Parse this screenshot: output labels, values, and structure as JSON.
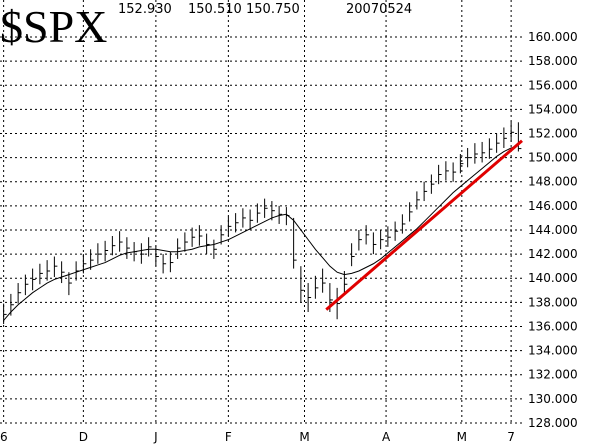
{
  "chart_data": {
    "type": "ohlc",
    "title": "$SPX",
    "header": [
      "152.930",
      "150.510",
      "150.750",
      "20070524"
    ],
    "xlim": [
      -1,
      143
    ],
    "ylim": [
      127.83,
      163.07
    ],
    "xticks": [
      {
        "value": 0,
        "label": "6"
      },
      {
        "value": 22,
        "label": "D"
      },
      {
        "value": 42,
        "label": "J"
      },
      {
        "value": 62,
        "label": "F"
      },
      {
        "value": 83,
        "label": "M"
      },
      {
        "value": 105.5,
        "label": "A"
      },
      {
        "value": 126.4,
        "label": "M"
      },
      {
        "value": 140,
        "label": "7"
      }
    ],
    "yticks": [
      {
        "value": 128,
        "label": "128.000"
      },
      {
        "value": 130,
        "label": "130.000"
      },
      {
        "value": 132,
        "label": "132.000"
      },
      {
        "value": 134,
        "label": "134.000"
      },
      {
        "value": 136,
        "label": "136.000"
      },
      {
        "value": 138,
        "label": "138.000"
      },
      {
        "value": 140,
        "label": "140.000"
      },
      {
        "value": 142,
        "label": "142.000"
      },
      {
        "value": 144,
        "label": "144.000"
      },
      {
        "value": 146,
        "label": "146.000"
      },
      {
        "value": 148,
        "label": "148.000"
      },
      {
        "value": 150,
        "label": "150.000"
      },
      {
        "value": 152,
        "label": "152.000"
      },
      {
        "value": 154,
        "label": "154.000"
      },
      {
        "value": 156,
        "label": "156.000"
      },
      {
        "value": 158,
        "label": "158.000"
      },
      {
        "value": 160,
        "label": "160.000"
      }
    ],
    "grid": true,
    "color": "#000000",
    "x": [
      0,
      2,
      4,
      6,
      8,
      10,
      12,
      14,
      16,
      18,
      20,
      22,
      24,
      26,
      28,
      30,
      32,
      34,
      36,
      38,
      40,
      42,
      44,
      46,
      48,
      50,
      52,
      54,
      56,
      58,
      60,
      62,
      64,
      66,
      68,
      70,
      72,
      74,
      76,
      78,
      80,
      82,
      84,
      86,
      88,
      90,
      92,
      94,
      96,
      98,
      100,
      102,
      104,
      106,
      108,
      110,
      112,
      114,
      116,
      118,
      120,
      122,
      124,
      126,
      128,
      130,
      132,
      134,
      136,
      138,
      140,
      142
    ],
    "high": [
      137.9,
      138.7,
      139.6,
      140.3,
      140.8,
      141.2,
      141.5,
      141.8,
      141.4,
      140.5,
      141.4,
      142.0,
      142.4,
      142.9,
      143.1,
      143.5,
      143.9,
      143.4,
      143.0,
      142.9,
      143.4,
      142.7,
      142.0,
      142.2,
      143.3,
      143.8,
      144.2,
      144.4,
      143.7,
      143.2,
      144.4,
      145.1,
      145.4,
      145.8,
      145.7,
      146.2,
      146.6,
      146.4,
      146.0,
      145.9,
      145.0,
      141.0,
      139.6,
      140.2,
      140.8,
      139.6,
      139.2,
      140.6,
      142.9,
      144.0,
      144.4,
      143.8,
      144.0,
      144.3,
      144.7,
      145.3,
      146.3,
      147.2,
      148.0,
      148.6,
      149.4,
      149.7,
      149.6,
      150.3,
      150.8,
      151.2,
      151.3,
      151.6,
      152.0,
      152.5,
      153.0,
      152.93
    ],
    "low": [
      136.2,
      136.9,
      137.9,
      138.6,
      139.0,
      139.5,
      139.8,
      140.1,
      139.6,
      138.6,
      139.8,
      140.4,
      140.7,
      141.2,
      141.4,
      141.9,
      142.2,
      141.6,
      141.4,
      141.2,
      141.8,
      141.0,
      140.4,
      140.5,
      141.6,
      142.2,
      142.6,
      142.7,
      142.0,
      141.6,
      142.8,
      143.5,
      143.8,
      144.2,
      144.0,
      144.6,
      145.0,
      144.8,
      144.5,
      144.4,
      140.8,
      138.0,
      137.2,
      138.3,
      138.8,
      137.2,
      136.6,
      138.6,
      141.0,
      142.3,
      142.8,
      142.0,
      142.4,
      142.6,
      143.1,
      143.7,
      144.7,
      145.7,
      146.4,
      147.0,
      147.8,
      148.1,
      148.0,
      148.7,
      149.2,
      149.5,
      149.6,
      149.9,
      150.4,
      150.8,
      151.3,
      150.51
    ],
    "close": [
      137.0,
      137.8,
      138.8,
      139.5,
      139.9,
      140.4,
      140.6,
      141.0,
      140.5,
      139.6,
      140.6,
      141.2,
      141.5,
      142.0,
      142.3,
      142.7,
      143.0,
      142.5,
      142.2,
      142.0,
      142.6,
      141.8,
      141.2,
      141.3,
      142.5,
      143.0,
      143.4,
      143.5,
      142.8,
      142.4,
      143.6,
      144.3,
      144.6,
      145.0,
      144.8,
      145.4,
      145.8,
      145.6,
      145.3,
      145.2,
      141.5,
      139.0,
      138.4,
      139.2,
      139.6,
      138.2,
      137.9,
      139.5,
      141.8,
      143.2,
      143.6,
      142.8,
      143.2,
      143.4,
      143.9,
      144.5,
      145.5,
      146.5,
      147.2,
      147.8,
      148.6,
      148.9,
      148.8,
      149.5,
      150.0,
      150.3,
      150.4,
      150.7,
      151.2,
      151.6,
      152.1,
      150.75
    ],
    "moving_average": [
      136.5,
      137.2,
      137.8,
      138.3,
      138.8,
      139.2,
      139.6,
      139.9,
      140.1,
      140.3,
      140.5,
      140.7,
      140.9,
      141.1,
      141.3,
      141.6,
      141.9,
      142.1,
      142.2,
      142.3,
      142.4,
      142.4,
      142.3,
      142.2,
      142.2,
      142.3,
      142.4,
      142.6,
      142.7,
      142.8,
      143.0,
      143.2,
      143.5,
      143.8,
      144.1,
      144.4,
      144.7,
      145.0,
      145.2,
      145.3,
      144.8,
      144.0,
      143.2,
      142.4,
      141.7,
      141.0,
      140.5,
      140.3,
      140.4,
      140.6,
      140.9,
      141.2,
      141.6,
      142.1,
      142.6,
      143.1,
      143.6,
      144.1,
      144.7,
      145.3,
      145.9,
      146.5,
      147.1,
      147.6,
      148.1,
      148.6,
      149.1,
      149.6,
      150.1,
      150.5,
      150.8,
      151.0
    ],
    "trendline": {
      "color": "#e00000",
      "x": [
        89,
        143
      ],
      "values": [
        137.4,
        151.4
      ]
    }
  }
}
